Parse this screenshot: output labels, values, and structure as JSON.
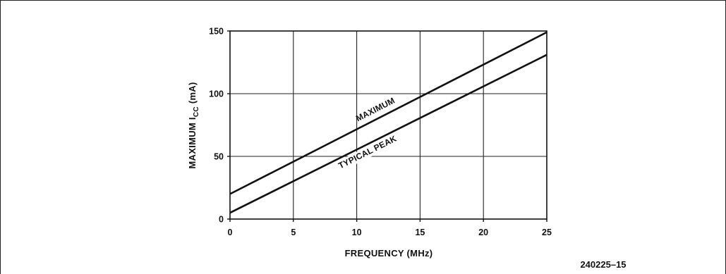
{
  "chart_data": {
    "type": "line",
    "title": "",
    "xlabel": "FREQUENCY (MHz)",
    "ylabel_prefix": "MAXIMUM I",
    "ylabel_subscript": "CC",
    "ylabel_suffix": " (mA)",
    "x_ticks": [
      0,
      5,
      10,
      15,
      20,
      25
    ],
    "y_ticks": [
      0,
      50,
      100,
      150
    ],
    "xlim": [
      0,
      25
    ],
    "ylim": [
      0,
      150
    ],
    "grid": true,
    "series": [
      {
        "name": "MAXIMUM",
        "x": [
          0,
          25
        ],
        "y": [
          20,
          149
        ]
      },
      {
        "name": "TYPICAL PEAK",
        "x": [
          0,
          25
        ],
        "y": [
          5,
          131
        ]
      }
    ]
  },
  "figure_id": "240225–15"
}
